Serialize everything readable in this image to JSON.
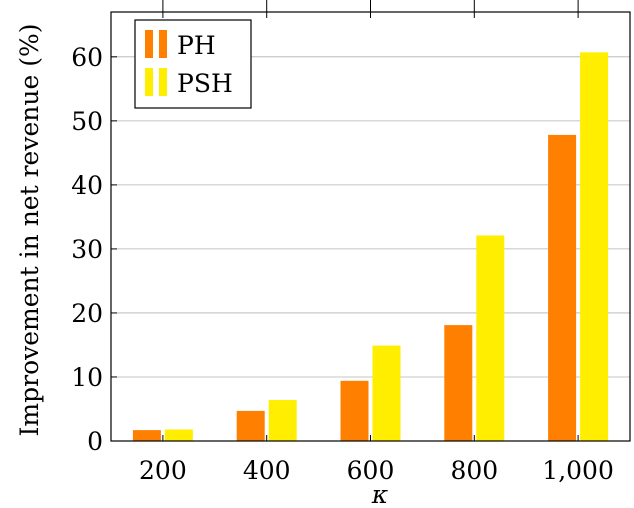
{
  "chart_data": {
    "type": "bar",
    "title": "",
    "xlabel": "κ",
    "ylabel": "Improvement in net revenue (%)",
    "categories": [
      "200",
      "400",
      "600",
      "800",
      "1,000"
    ],
    "series": [
      {
        "name": "PH",
        "color": "#ff8000",
        "values": [
          1.7,
          4.7,
          9.4,
          18.1,
          47.8
        ]
      },
      {
        "name": "PSH",
        "color": "#ffee00",
        "values": [
          1.8,
          6.4,
          14.9,
          32.1,
          60.7
        ]
      }
    ],
    "ylim": [
      0,
      67
    ],
    "yticks": [
      "0",
      "10",
      "20",
      "30",
      "40",
      "50",
      "60"
    ],
    "grid": "horizontal",
    "legend": "top-left"
  }
}
